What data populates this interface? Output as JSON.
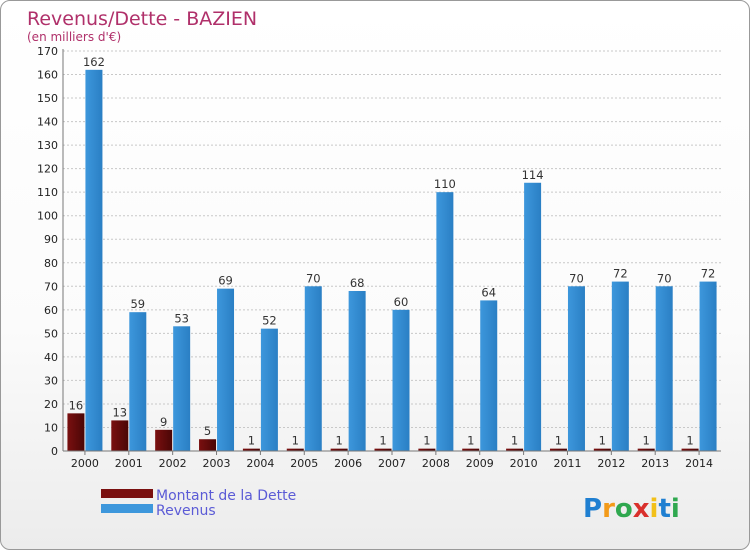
{
  "chart_data": {
    "type": "bar",
    "title": "Revenus/Dette - BAZIEN",
    "subtitle": "(en milliers d'€)",
    "categories": [
      "2000",
      "2001",
      "2002",
      "2003",
      "2004",
      "2005",
      "2006",
      "2007",
      "2008",
      "2009",
      "2010",
      "2011",
      "2012",
      "2013",
      "2014"
    ],
    "series": [
      {
        "name": "Montant de la Dette",
        "color": "#7a1010",
        "values": [
          16,
          13,
          9,
          5,
          1,
          1,
          1,
          1,
          1,
          1,
          1,
          1,
          1,
          1,
          1
        ]
      },
      {
        "name": "Revenus",
        "color": "#3d97dc",
        "values": [
          162,
          59,
          53,
          69,
          52,
          70,
          68,
          60,
          110,
          64,
          114,
          70,
          72,
          70,
          72
        ]
      }
    ],
    "ylim": [
      0,
      170
    ],
    "yticks": [
      0,
      10,
      20,
      30,
      40,
      50,
      60,
      70,
      80,
      90,
      100,
      110,
      120,
      130,
      140,
      150,
      160,
      170
    ],
    "grid": true,
    "legend": "bottom-left"
  },
  "logo": {
    "text": "Proxiti",
    "letters": [
      "P",
      "r",
      "o",
      "x",
      "i",
      "t",
      "i"
    ],
    "colors": [
      "#1f7fd1",
      "#f29a19",
      "#2fa84f",
      "#d9302c",
      "#f2c019",
      "#1f7fd1",
      "#2fa84f"
    ]
  }
}
